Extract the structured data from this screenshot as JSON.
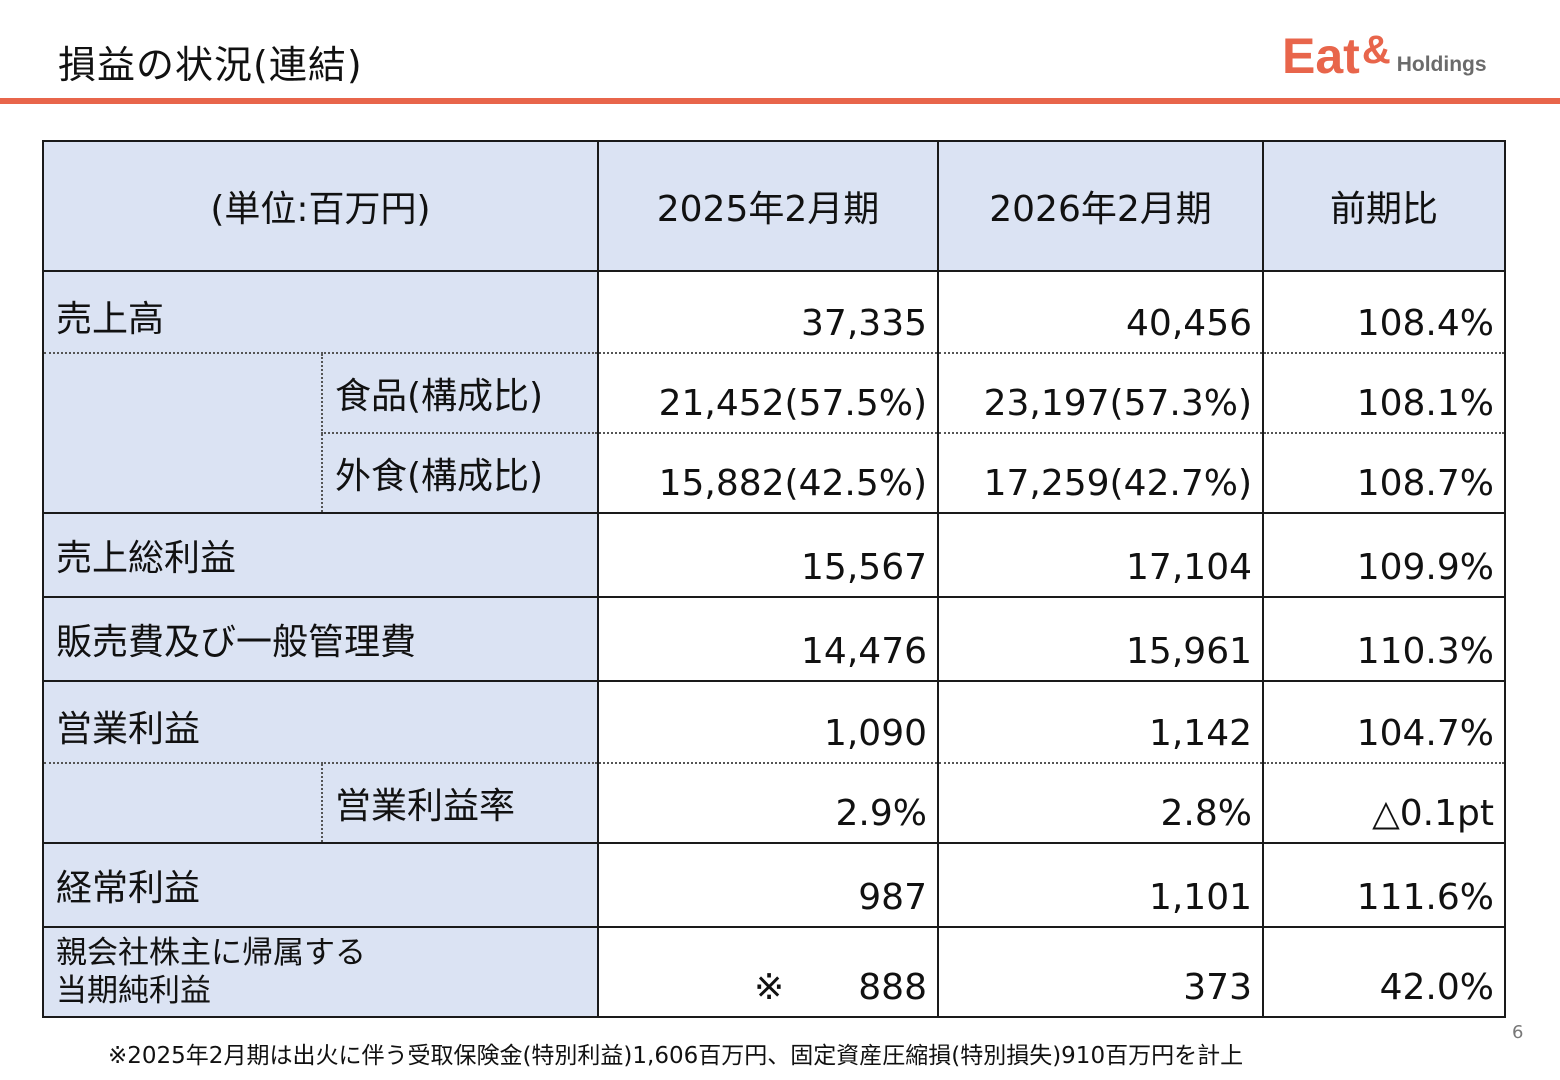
{
  "title": "損益の状況(連結)",
  "logo": {
    "main": "Eat",
    "amp": "&",
    "sub": "Holdings"
  },
  "brand_color": "#e8654b",
  "header": {
    "unit": "(単位:百万円)",
    "col1": "2025年2月期",
    "col2": "2026年2月期",
    "col3": "前期比"
  },
  "rows": {
    "sales": {
      "label": "売上高",
      "v2025": "37,335",
      "v2026": "40,456",
      "ratio": "108.4%"
    },
    "food": {
      "label": "食品(構成比)",
      "v2025": "21,452(57.5%)",
      "v2026": "23,197(57.3%)",
      "ratio": "108.1%"
    },
    "dining": {
      "label": "外食(構成比)",
      "v2025": "15,882(42.5%)",
      "v2026": "17,259(42.7%)",
      "ratio": "108.7%"
    },
    "gross": {
      "label": "売上総利益",
      "v2025": "15,567",
      "v2026": "17,104",
      "ratio": "109.9%"
    },
    "sga": {
      "label": "販売費及び一般管理費",
      "v2025": "14,476",
      "v2026": "15,961",
      "ratio": "110.3%"
    },
    "op": {
      "label": "営業利益",
      "v2025": "1,090",
      "v2026": "1,142",
      "ratio": "104.7%"
    },
    "opmargin": {
      "label": "営業利益率",
      "v2025": "2.9%",
      "v2026": "2.8%",
      "ratio": "△0.1pt"
    },
    "ordinary": {
      "label": "経常利益",
      "v2025": "987",
      "v2026": "1,101",
      "ratio": "111.6%"
    },
    "net": {
      "label_line1": "親会社株主に帰属する",
      "label_line2": "当期純利益",
      "mark": "※",
      "v2025": "888",
      "v2026": "373",
      "ratio": "42.0%"
    }
  },
  "footnote": "※2025年2月期は出火に伴う受取保険金(特別利益)1,606百万円、固定資産圧縮損(特別損失)910百万円を計上",
  "page_number": "6"
}
